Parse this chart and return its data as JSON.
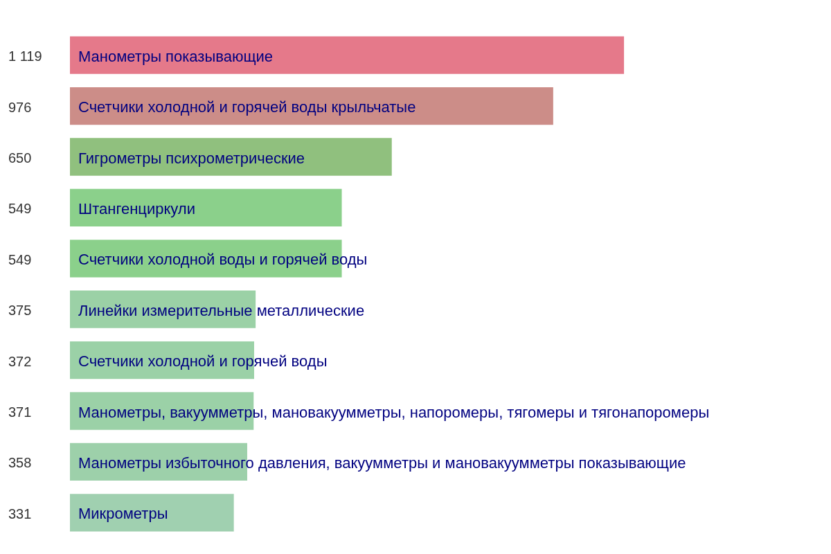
{
  "chart_data": {
    "type": "bar",
    "orientation": "horizontal",
    "categories": [
      "Манометры показывающие",
      "Счетчики холодной и горячей воды крыльчатые",
      "Гигрометры психрометрические",
      "Штангенциркули",
      "Счетчики холодной воды и горячей воды",
      "Линейки измерительные металлические",
      "Счетчики холодной и горячей воды",
      "Манометры, вакуумметры, мановакуумметры, напоромеры, тягомеры и тягонапоромеры",
      "Манометры избыточного давления, вакуумметры и мановакуумметры показывающие",
      "Микрометры"
    ],
    "values": [
      1119,
      976,
      650,
      549,
      549,
      375,
      372,
      371,
      358,
      331
    ],
    "value_labels": [
      "1 119",
      "976",
      "650",
      "549",
      "549",
      "375",
      "372",
      "371",
      "358",
      "331"
    ],
    "colors": [
      "#e5798a",
      "#cc8d88",
      "#90c07e",
      "#8bd08b",
      "#8bd08b",
      "#9bd1a6",
      "#9bd1a7",
      "#9bd1a7",
      "#9dd0aa",
      "#a0d0b0"
    ],
    "tick_labels": false,
    "legend": false
  }
}
